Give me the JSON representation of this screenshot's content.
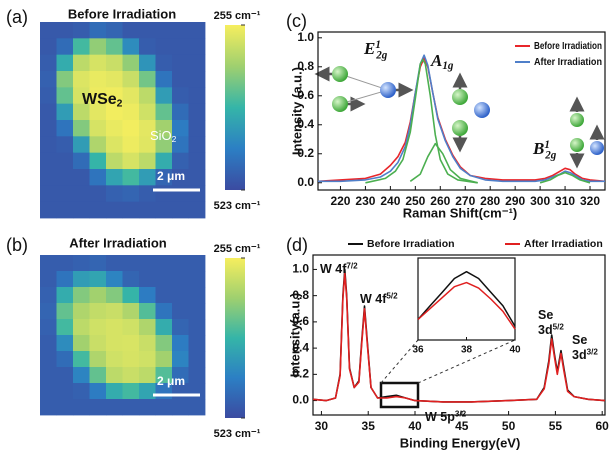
{
  "chart_data": [
    {
      "type": "heatmap",
      "panel_label": "(a)",
      "title": "Before Irradiation",
      "colormap": [
        "#3b4ba1",
        "#2c7fc4",
        "#35b5a8",
        "#9fd06f",
        "#f6ee5e"
      ],
      "clim": [
        {
          "value": 255,
          "label": "255 cm⁻¹"
        },
        {
          "value": 523,
          "label": "523 cm⁻¹"
        }
      ],
      "values": [
        [
          505,
          505,
          500,
          480,
          490,
          505,
          505,
          505,
          505,
          505
        ],
        [
          505,
          480,
          380,
          330,
          360,
          440,
          500,
          505,
          505,
          505
        ],
        [
          500,
          400,
          300,
          280,
          290,
          330,
          430,
          500,
          505,
          505
        ],
        [
          495,
          340,
          275,
          265,
          270,
          290,
          350,
          470,
          505,
          505
        ],
        [
          500,
          360,
          280,
          262,
          260,
          270,
          300,
          420,
          500,
          505
        ],
        [
          505,
          420,
          300,
          270,
          258,
          262,
          285,
          360,
          480,
          505
        ],
        [
          505,
          470,
          340,
          280,
          265,
          258,
          270,
          320,
          460,
          505
        ],
        [
          505,
          500,
          420,
          310,
          275,
          262,
          272,
          330,
          470,
          505
        ],
        [
          505,
          505,
          480,
          390,
          300,
          280,
          300,
          400,
          495,
          505
        ],
        [
          505,
          505,
          505,
          470,
          410,
          380,
          420,
          490,
          505,
          505
        ],
        [
          505,
          505,
          505,
          505,
          495,
          490,
          500,
          505,
          505,
          505
        ],
        [
          505,
          505,
          505,
          505,
          505,
          505,
          505,
          505,
          505,
          505
        ]
      ],
      "annotations": [
        {
          "text": "WSe",
          "sub": "2"
        },
        {
          "text": "SiO",
          "sub": "2"
        },
        {
          "text": "2 μm"
        }
      ]
    },
    {
      "type": "heatmap",
      "panel_label": "(b)",
      "title": "After Irradiation",
      "colormap": [
        "#3b4ba1",
        "#2c7fc4",
        "#35b5a8",
        "#9fd06f",
        "#f6ee5e"
      ],
      "clim": [
        {
          "value": 255,
          "label": "255 cm⁻¹"
        },
        {
          "value": 523,
          "label": "523 cm⁻¹"
        }
      ],
      "values": [
        [
          500,
          500,
          495,
          490,
          500,
          500,
          500,
          500,
          500,
          500
        ],
        [
          500,
          470,
          420,
          410,
          450,
          490,
          500,
          500,
          500,
          500
        ],
        [
          495,
          400,
          340,
          320,
          340,
          390,
          460,
          500,
          500,
          500
        ],
        [
          490,
          360,
          310,
          295,
          290,
          310,
          370,
          470,
          500,
          500
        ],
        [
          495,
          380,
          300,
          285,
          280,
          285,
          310,
          400,
          490,
          500
        ],
        [
          500,
          440,
          320,
          290,
          280,
          278,
          290,
          340,
          460,
          500
        ],
        [
          500,
          480,
          380,
          310,
          285,
          280,
          285,
          320,
          450,
          500
        ],
        [
          500,
          500,
          450,
          360,
          300,
          290,
          300,
          370,
          480,
          500
        ],
        [
          500,
          500,
          495,
          460,
          400,
          380,
          410,
          470,
          500,
          500
        ],
        [
          500,
          500,
          500,
          500,
          500,
          500,
          500,
          500,
          500,
          500
        ]
      ],
      "annotations": [
        {
          "text": "2 μm"
        }
      ]
    },
    {
      "type": "line",
      "panel_label": "(c)",
      "xlabel": "Raman Shift(cm⁻¹)",
      "ylabel": "Intensity (a.u.)",
      "xlim": [
        211,
        326
      ],
      "ylim": [
        -0.05,
        1.04
      ],
      "xticks": [
        220,
        230,
        240,
        250,
        260,
        270,
        280,
        290,
        300,
        310,
        320
      ],
      "yticks": [
        {
          "value": 0,
          "label": "0.0"
        },
        0.2,
        0.4,
        0.6,
        0.8,
        {
          "value": 1,
          "label": "1.0"
        }
      ],
      "legend": "upper right",
      "series": [
        {
          "name": "Before Irradiation",
          "color": "#e8262b",
          "x": [
            211,
            220,
            230,
            236,
            240,
            243,
            246,
            248,
            250,
            252,
            253.5,
            255,
            257,
            259,
            262,
            265,
            268,
            272,
            278,
            285,
            292,
            298,
            302,
            305,
            308,
            310,
            312,
            314,
            317,
            320,
            326
          ],
          "values": [
            0.01,
            0.02,
            0.03,
            0.06,
            0.12,
            0.18,
            0.28,
            0.42,
            0.62,
            0.8,
            0.86,
            0.8,
            0.62,
            0.45,
            0.3,
            0.19,
            0.11,
            0.05,
            0.03,
            0.02,
            0.02,
            0.02,
            0.03,
            0.05,
            0.08,
            0.1,
            0.09,
            0.06,
            0.03,
            0.02,
            0.01
          ]
        },
        {
          "name": "After Irradiation",
          "color": "#4f7fc9",
          "x": [
            211,
            220,
            230,
            236,
            240,
            243,
            246,
            248,
            250,
            252,
            253.5,
            255,
            257,
            259,
            262,
            265,
            268,
            272,
            278,
            285,
            292,
            298,
            302,
            305,
            308,
            310,
            312,
            314,
            317,
            320,
            326
          ],
          "values": [
            0.01,
            0.01,
            0.02,
            0.04,
            0.08,
            0.14,
            0.25,
            0.4,
            0.62,
            0.82,
            0.88,
            0.81,
            0.62,
            0.44,
            0.29,
            0.18,
            0.1,
            0.05,
            0.02,
            0.01,
            0.01,
            0.01,
            0.02,
            0.04,
            0.06,
            0.08,
            0.07,
            0.05,
            0.02,
            0.01,
            0.01
          ]
        },
        {
          "color": "#4caf50",
          "x": [
            230,
            238,
            242,
            245,
            248,
            250,
            252,
            253,
            254,
            256,
            258,
            260,
            263,
            267,
            275
          ],
          "values": [
            0.0,
            0.03,
            0.08,
            0.16,
            0.35,
            0.58,
            0.82,
            0.85,
            0.82,
            0.6,
            0.33,
            0.16,
            0.06,
            0.02,
            0.0
          ]
        },
        {
          "color": "#4caf50",
          "x": [
            248,
            252,
            255,
            258,
            261,
            264,
            268,
            275
          ],
          "values": [
            0.01,
            0.06,
            0.18,
            0.27,
            0.2,
            0.09,
            0.03,
            0.0
          ]
        },
        {
          "color": "#4caf50",
          "x": [
            300,
            304,
            307,
            310,
            313,
            316,
            320
          ],
          "values": [
            0.0,
            0.02,
            0.05,
            0.07,
            0.05,
            0.02,
            0.0
          ]
        }
      ],
      "annotations": [
        {
          "text": "E",
          "sup": "1",
          "sub": "2g"
        },
        {
          "text": "A",
          "sub": "1g"
        },
        {
          "text": "B",
          "sup": "1",
          "sub": "2g"
        }
      ]
    },
    {
      "type": "line",
      "panel_label": "(d)",
      "xlabel": "Binding Energy(eV)",
      "ylabel": "Intensity(a.u.)",
      "xlim": [
        29.1,
        60.3
      ],
      "ylim": [
        -0.11,
        1.11
      ],
      "xticks": [
        30,
        35,
        40,
        45,
        50,
        55,
        60
      ],
      "yticks": [
        {
          "value": 0,
          "label": "0.0"
        },
        0.2,
        0.4,
        0.6,
        0.8,
        {
          "value": 1,
          "label": "1.0"
        }
      ],
      "legend": "top",
      "series": [
        {
          "name": "Before Irradiation",
          "color": "#111111",
          "x": [
            29.1,
            30.5,
            31.5,
            32,
            32.3,
            32.5,
            32.7,
            33,
            33.5,
            34,
            34.3,
            34.6,
            34.9,
            35.3,
            36,
            37,
            38,
            39,
            40,
            43,
            46,
            50,
            53,
            53.8,
            54.3,
            54.6,
            54.9,
            55.2,
            55.6,
            55.9,
            56.3,
            57,
            58.5,
            60.3
          ],
          "values": [
            0.01,
            0.0,
            0.02,
            0.2,
            0.8,
            1.0,
            0.8,
            0.25,
            0.1,
            0.15,
            0.45,
            0.72,
            0.45,
            0.1,
            0.02,
            0.03,
            0.04,
            0.02,
            0.0,
            -0.01,
            -0.01,
            0.0,
            0.01,
            0.1,
            0.3,
            0.5,
            0.35,
            0.22,
            0.38,
            0.25,
            0.08,
            0.03,
            0.01,
            0.0
          ]
        },
        {
          "name": "After Irradiation",
          "color": "#e02020",
          "x": [
            29.1,
            30.5,
            31.5,
            32,
            32.3,
            32.5,
            32.7,
            33,
            33.5,
            34,
            34.3,
            34.6,
            34.9,
            35.3,
            36,
            37,
            38,
            39,
            40,
            43,
            46,
            50,
            53,
            53.8,
            54.3,
            54.6,
            54.9,
            55.2,
            55.6,
            55.9,
            56.3,
            57,
            58.5,
            60.3
          ],
          "values": [
            0.01,
            0.0,
            0.02,
            0.19,
            0.78,
            0.97,
            0.78,
            0.24,
            0.1,
            0.14,
            0.43,
            0.7,
            0.43,
            0.1,
            0.02,
            0.02,
            0.03,
            0.02,
            0.0,
            -0.01,
            -0.01,
            0.0,
            0.01,
            0.09,
            0.28,
            0.47,
            0.33,
            0.2,
            0.36,
            0.23,
            0.07,
            0.03,
            0.01,
            0.0
          ]
        }
      ],
      "annotations": [
        {
          "text": "W 4f",
          "sup": "7/2"
        },
        {
          "text": "W 4f",
          "sup": "5/2"
        },
        {
          "text": "W 5p",
          "sup": "3/2"
        },
        {
          "text": "Se"
        },
        {
          "text": "3d",
          "sup": "5/2"
        },
        {
          "text": "Se"
        },
        {
          "text": "3d",
          "sup": "3/2"
        }
      ],
      "inset": {
        "xlim": [
          36,
          40
        ],
        "ylim": [
          -0.005,
          0.055
        ],
        "xticks": [
          36,
          38,
          40
        ],
        "series": [
          {
            "color": "#111111",
            "x": [
              36,
              36.5,
              37,
              37.5,
              38,
              38.5,
              39,
              39.5,
              40
            ],
            "values": [
              0.01,
              0.02,
              0.03,
              0.04,
              0.045,
              0.04,
              0.03,
              0.02,
              0.005
            ]
          },
          {
            "color": "#e02020",
            "x": [
              36,
              36.5,
              37,
              37.5,
              38,
              38.5,
              39,
              39.5,
              40
            ],
            "values": [
              0.01,
              0.018,
              0.026,
              0.034,
              0.037,
              0.033,
              0.025,
              0.016,
              0.003
            ]
          }
        ]
      }
    }
  ]
}
